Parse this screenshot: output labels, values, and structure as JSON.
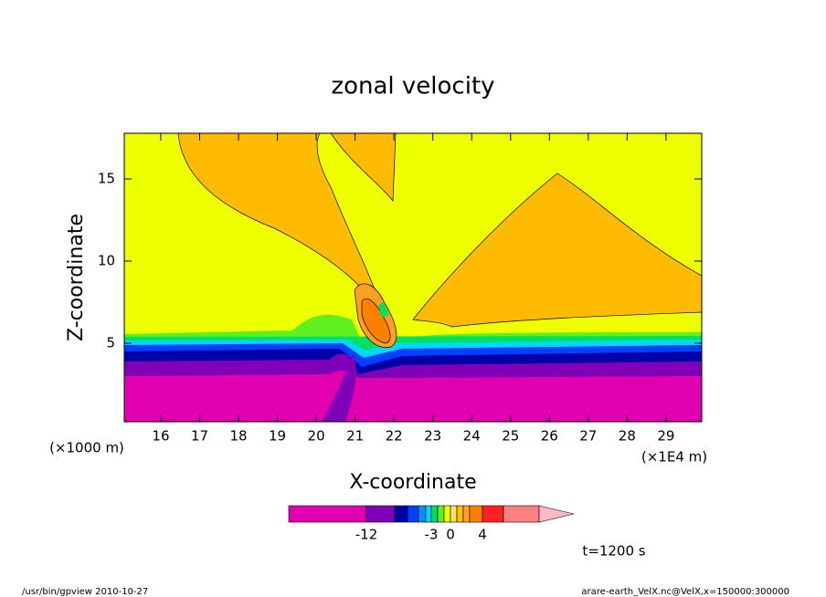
{
  "chart_data": {
    "type": "contour",
    "title": "zonal velocity",
    "x_label": "X-coordinate",
    "y_label": "Z-coordinate",
    "x_unit": "(×1E4 m)",
    "y_unit": "(×1000 m)",
    "xlim": [
      15.06,
      29.92
    ],
    "xticks": [
      16,
      17,
      18,
      19,
      20,
      21,
      22,
      23,
      24,
      25,
      26,
      27,
      28,
      29
    ],
    "ylim": [
      0.22,
      17.78
    ],
    "yticks": [
      5,
      10,
      15
    ],
    "colorbar": {
      "colors": [
        "#e000b0",
        "#8000b8",
        "#0000a8",
        "#0040ff",
        "#0090ff",
        "#00d8ff",
        "#00e060",
        "#60f020",
        "#eeff00",
        "#ffe060",
        "#ffc000",
        "#ffa020",
        "#ff8000",
        "#ff2020",
        "#ff8080",
        "#ffb8c8"
      ],
      "ticks": [
        -12,
        -3,
        0,
        4
      ]
    },
    "annotation": "t=1200 s",
    "footer_left": "/usr/bin/gpview  2010-10-27",
    "footer_right": "arare-earth_VelX.nc@VelX,x=150000:300000"
  }
}
